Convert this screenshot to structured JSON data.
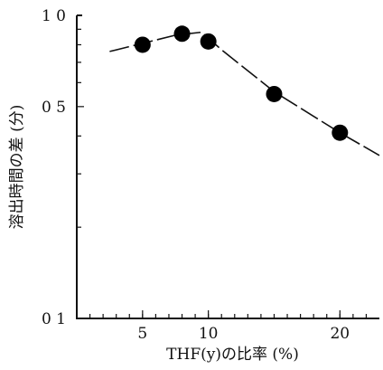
{
  "chart_data": {
    "type": "scatter",
    "title": "",
    "xlabel": "THF(y)の比率 (%)",
    "ylabel": "溶出時間の差 (分)",
    "x_ticks": [
      5,
      10,
      20
    ],
    "x_tick_labels": [
      "5",
      "10",
      "20"
    ],
    "y_ticks": [
      0.1,
      0.5,
      1.0
    ],
    "y_tick_labels": [
      "0 1",
      "0 5",
      "1 0"
    ],
    "xlim": [
      0,
      23
    ],
    "ylim": [
      0.1,
      1.0
    ],
    "y_scale": "log",
    "grid": false,
    "series": [
      {
        "points": [
          {
            "x": 5,
            "y": 0.8
          },
          {
            "x": 8,
            "y": 0.87
          },
          {
            "x": 10,
            "y": 0.82
          },
          {
            "x": 15,
            "y": 0.55
          },
          {
            "x": 20,
            "y": 0.41
          }
        ],
        "marker": "filled-circle",
        "color": "#000000"
      }
    ],
    "trend_line": {
      "style": "dashed",
      "points": [
        {
          "x": 2.5,
          "y": 0.76
        },
        {
          "x": 7.5,
          "y": 0.86
        },
        {
          "x": 9.5,
          "y": 0.88
        },
        {
          "x": 11,
          "y": 0.77
        },
        {
          "x": 15,
          "y": 0.56
        },
        {
          "x": 20,
          "y": 0.41
        },
        {
          "x": 23,
          "y": 0.345
        }
      ]
    }
  }
}
